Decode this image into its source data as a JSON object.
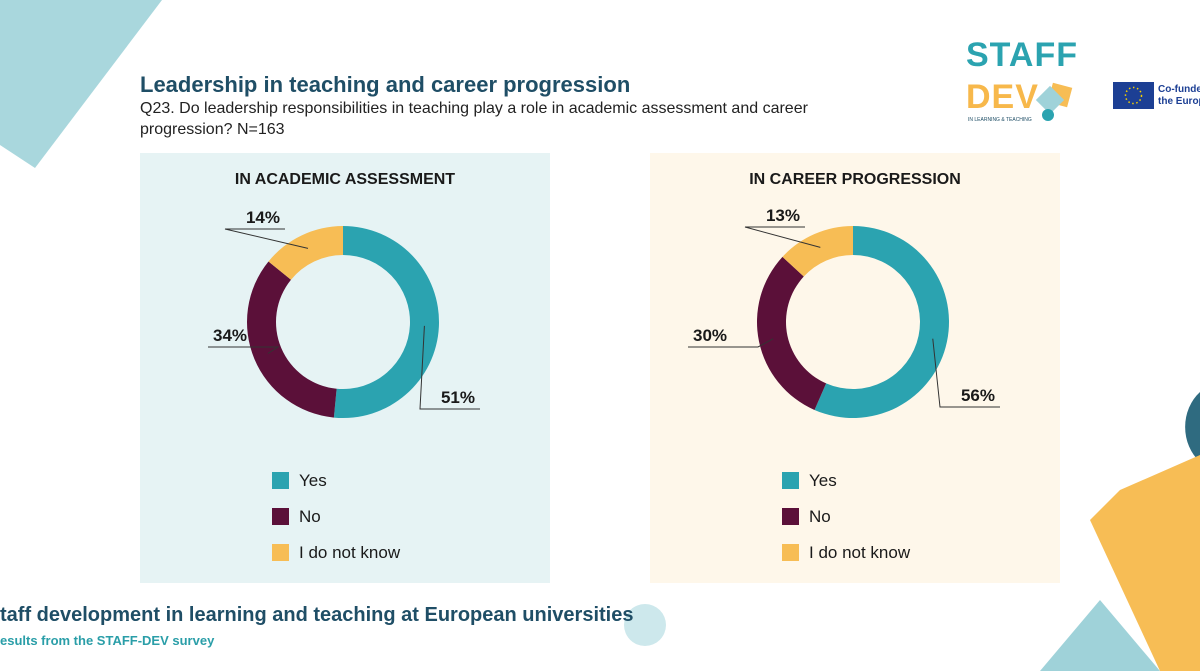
{
  "header": {
    "title": "Leadership in teaching and career progression",
    "subtitle": "Q23. Do leadership responsibilities in teaching play a role in academic assessment and career progression? N=163"
  },
  "logo": {
    "line1": "STAFF",
    "line2": "DEV",
    "tagline": "IN LEARNING & TEACHING",
    "eu_text_line1": "Co-funded",
    "eu_text_line2": "the Europ"
  },
  "footer": {
    "title": "taff development in learning and teaching at European universities",
    "subtitle": "esults from the STAFF-DEV survey"
  },
  "colors": {
    "yes": "#2ba3b0",
    "no": "#5b1039",
    "dont_know": "#f7bd55",
    "left_panel_bg": "#e6f3f4",
    "right_panel_bg": "#fef7ea"
  },
  "chart_data": [
    {
      "type": "pie",
      "donut": true,
      "title": "IN ACADEMIC ASSESSMENT",
      "categories": [
        "Yes",
        "No",
        "I do not know"
      ],
      "values": [
        51,
        34,
        14
      ],
      "value_labels": [
        "51%",
        "34%",
        "14%"
      ],
      "legend": [
        "Yes",
        "No",
        "I do not know"
      ],
      "legend_position": "bottom"
    },
    {
      "type": "pie",
      "donut": true,
      "title": "IN CAREER PROGRESSION",
      "categories": [
        "Yes",
        "No",
        "I do not know"
      ],
      "values": [
        56,
        30,
        13
      ],
      "value_labels": [
        "56%",
        "30%",
        "13%"
      ],
      "legend": [
        "Yes",
        "No",
        "I do not know"
      ],
      "legend_position": "bottom"
    }
  ]
}
